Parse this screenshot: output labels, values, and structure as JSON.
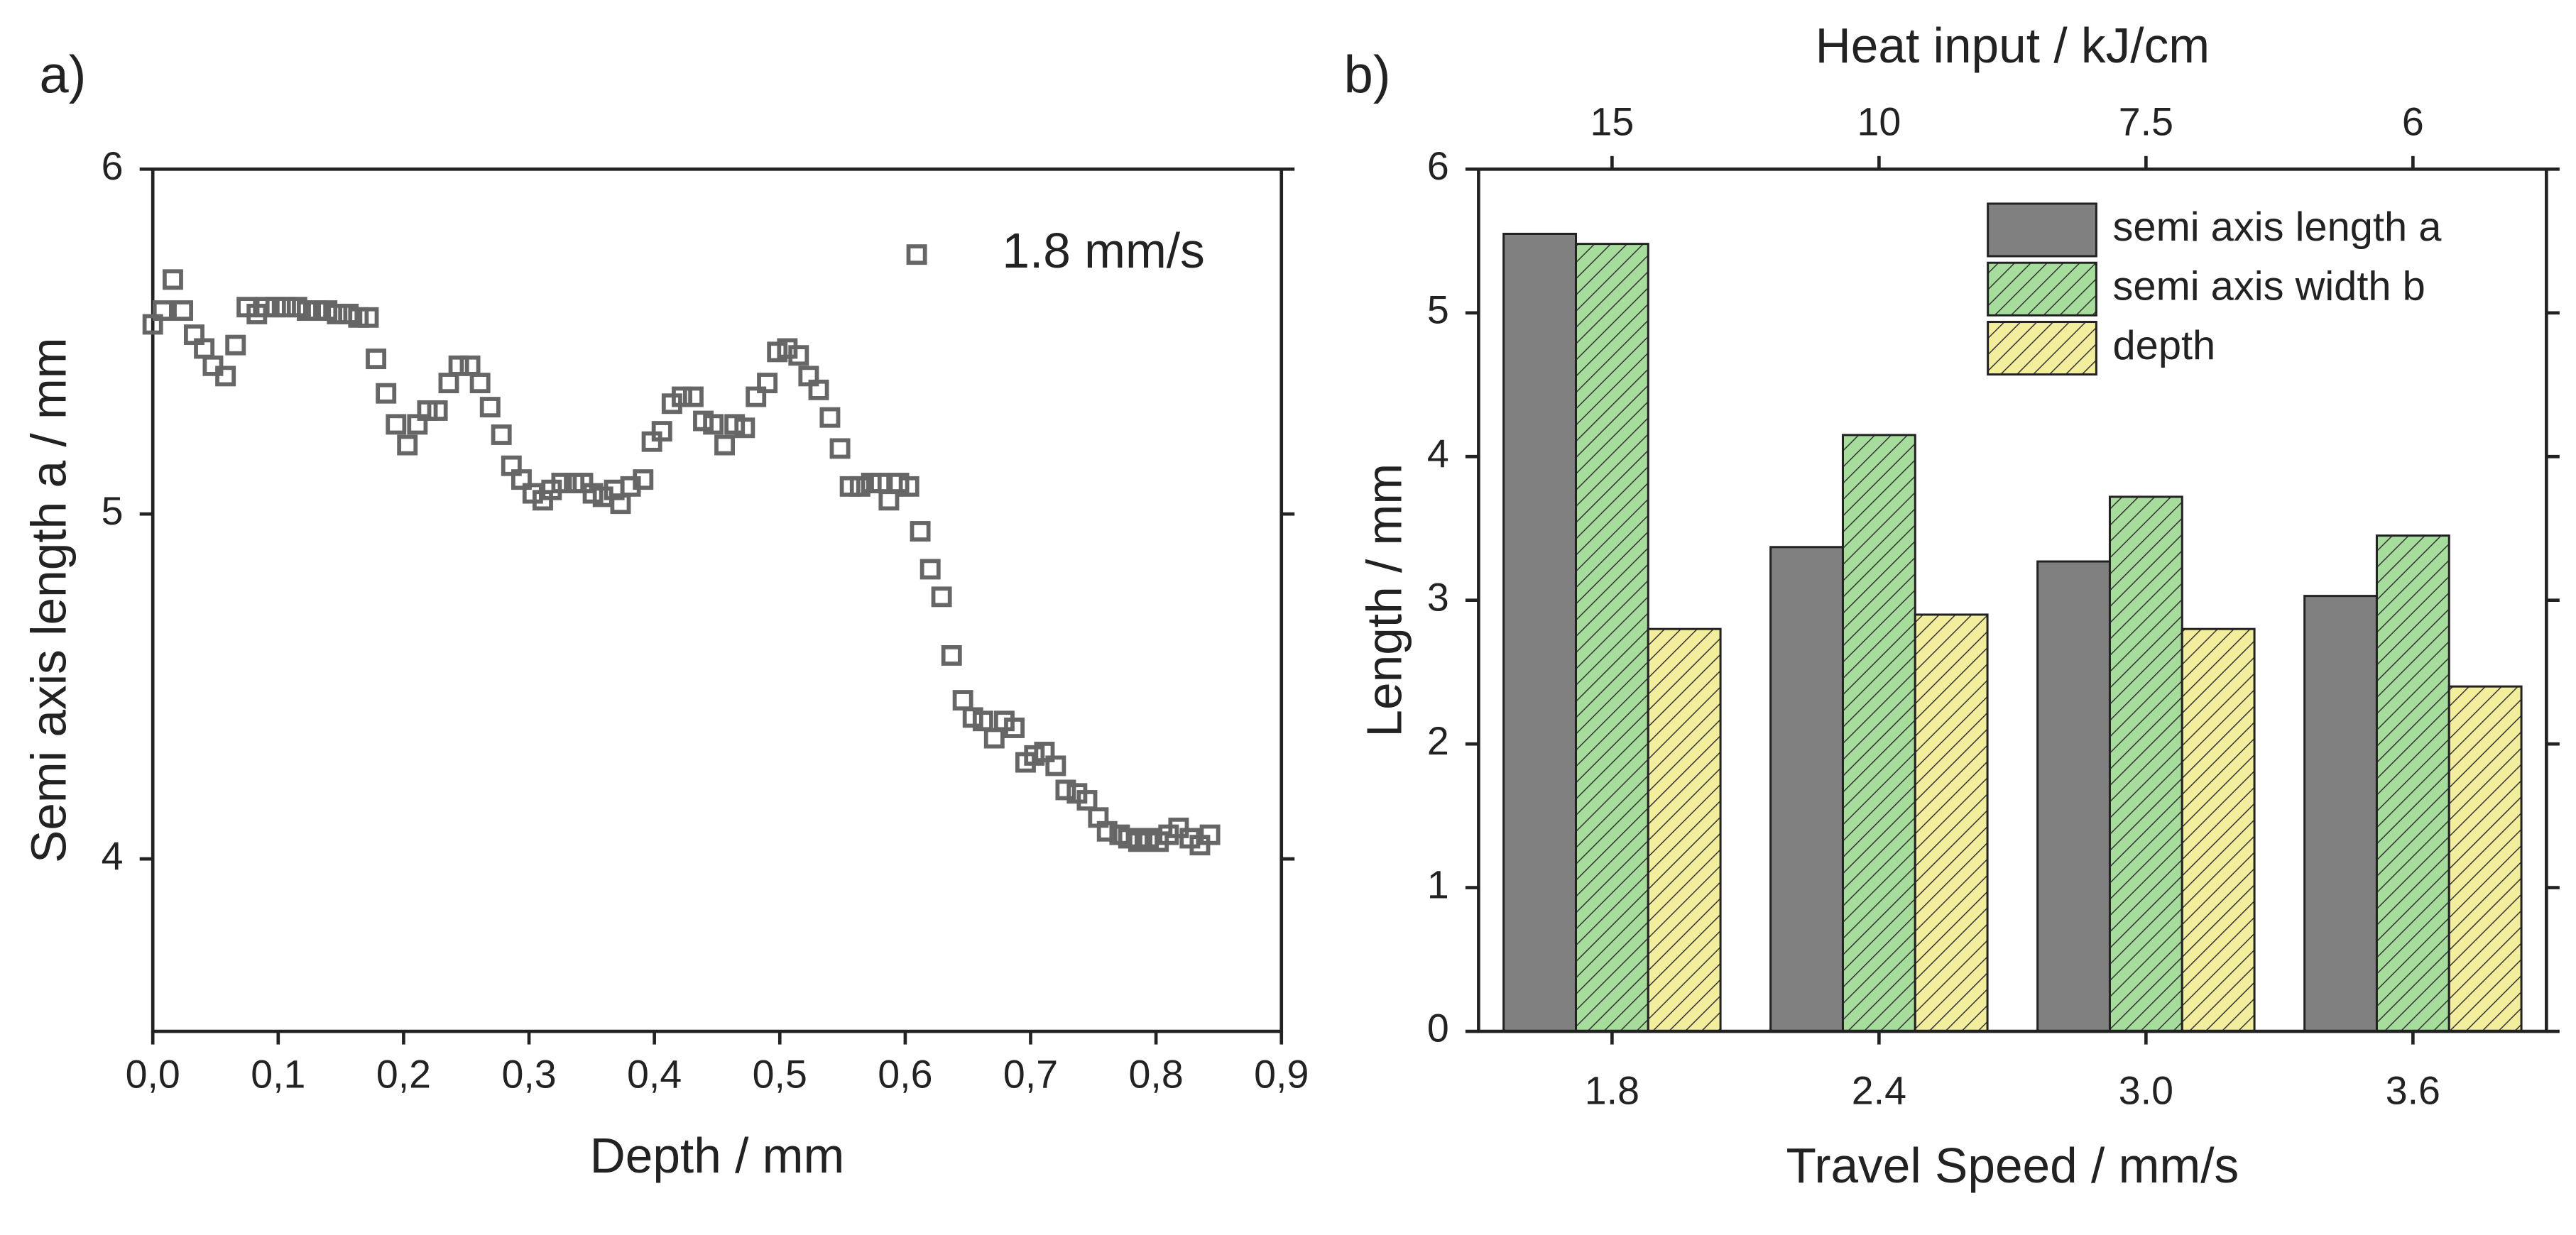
{
  "chart_data": [
    {
      "type": "scatter",
      "panel_label": "a)",
      "x_label": "Depth / mm",
      "y_label": "Semi axis length a / mm",
      "xlim": [
        0,
        0.9
      ],
      "ylim": [
        3.5,
        6
      ],
      "xticks": [
        {
          "value": 0,
          "label": "0,0"
        },
        {
          "value": 0.1,
          "label": "0,1"
        },
        {
          "value": 0.2,
          "label": "0,2"
        },
        {
          "value": 0.3,
          "label": "0,3"
        },
        {
          "value": 0.4,
          "label": "0,4"
        },
        {
          "value": 0.5,
          "label": "0,5"
        },
        {
          "value": 0.6,
          "label": "0,6"
        },
        {
          "value": 0.7,
          "label": "0,7"
        },
        {
          "value": 0.8,
          "label": "0,8"
        },
        {
          "value": 0.9,
          "label": "0,9"
        }
      ],
      "yticks": [
        4,
        5,
        6
      ],
      "legend": "upper right",
      "series": [
        {
          "name": "1.8 mm/s",
          "color": "#666666",
          "x": [
            0.0,
            0.008,
            0.016,
            0.024,
            0.033,
            0.041,
            0.048,
            0.058,
            0.066,
            0.075,
            0.083,
            0.09,
            0.098,
            0.106,
            0.115,
            0.123,
            0.131,
            0.139,
            0.147,
            0.156,
            0.164,
            0.172,
            0.178,
            0.186,
            0.194,
            0.203,
            0.211,
            0.219,
            0.227,
            0.236,
            0.244,
            0.253,
            0.261,
            0.269,
            0.278,
            0.286,
            0.294,
            0.303,
            0.311,
            0.318,
            0.326,
            0.336,
            0.343,
            0.351,
            0.359,
            0.368,
            0.373,
            0.381,
            0.391,
            0.398,
            0.406,
            0.414,
            0.422,
            0.431,
            0.439,
            0.447,
            0.456,
            0.464,
            0.472,
            0.481,
            0.49,
            0.498,
            0.506,
            0.515,
            0.523,
            0.531,
            0.54,
            0.548,
            0.556,
            0.564,
            0.573,
            0.58,
            0.587,
            0.595,
            0.603,
            0.612,
            0.62,
            0.629,
            0.637,
            0.646,
            0.654,
            0.662,
            0.671,
            0.679,
            0.687,
            0.696,
            0.703,
            0.711,
            0.72,
            0.728,
            0.737,
            0.745,
            0.754,
            0.761,
            0.771,
            0.778,
            0.786,
            0.794,
            0.802,
            0.81,
            0.818,
            0.827,
            0.835,
            0.843
          ],
          "values": [
            5.55,
            5.59,
            5.68,
            5.59,
            5.52,
            5.48,
            5.43,
            5.4,
            5.49,
            5.6,
            5.58,
            5.6,
            5.6,
            5.6,
            5.6,
            5.59,
            5.59,
            5.59,
            5.58,
            5.58,
            5.57,
            5.57,
            5.45,
            5.35,
            5.26,
            5.2,
            5.26,
            5.3,
            5.3,
            5.38,
            5.43,
            5.43,
            5.38,
            5.31,
            5.23,
            5.14,
            5.1,
            5.06,
            5.04,
            5.07,
            5.09,
            5.09,
            5.09,
            5.06,
            5.05,
            5.07,
            5.03,
            5.08,
            5.1,
            5.21,
            5.24,
            5.32,
            5.34,
            5.34,
            5.27,
            5.26,
            5.2,
            5.26,
            5.25,
            5.34,
            5.38,
            5.47,
            5.48,
            5.46,
            5.4,
            5.36,
            5.28,
            5.19,
            5.08,
            5.08,
            5.09,
            5.09,
            5.04,
            5.09,
            5.08,
            4.95,
            4.84,
            4.76,
            4.59,
            4.46,
            4.41,
            4.4,
            4.35,
            4.4,
            4.38,
            4.28,
            4.3,
            4.31,
            4.27,
            4.2,
            4.19,
            4.17,
            4.12,
            4.08,
            4.07,
            4.06,
            4.05,
            4.06,
            4.05,
            4.07,
            4.09,
            4.06,
            4.04,
            4.07
          ]
        }
      ]
    },
    {
      "type": "bar",
      "panel_label": "b)",
      "x_label": "Travel Speed / mm/s",
      "x2_label": "Heat input / kJ/cm",
      "y_label": "Length / mm",
      "categories": [
        "1.8",
        "2.4",
        "3.0",
        "3.6"
      ],
      "categories2": [
        "15",
        "10",
        "7.5",
        "6"
      ],
      "ylim": [
        0,
        6
      ],
      "yticks": [
        0,
        1,
        2,
        3,
        4,
        5,
        6
      ],
      "legend": "upper right",
      "series": [
        {
          "name": "semi axis length a",
          "color": "#808080",
          "hatch": false,
          "values": [
            5.55,
            3.37,
            3.27,
            3.03
          ]
        },
        {
          "name": "semi axis width b",
          "color": "#a6dc9c",
          "hatch": true,
          "values": [
            5.48,
            4.15,
            3.72,
            3.45
          ]
        },
        {
          "name": "depth",
          "color": "#f2ee9e",
          "hatch": true,
          "values": [
            2.8,
            2.9,
            2.8,
            2.4
          ]
        }
      ]
    }
  ]
}
